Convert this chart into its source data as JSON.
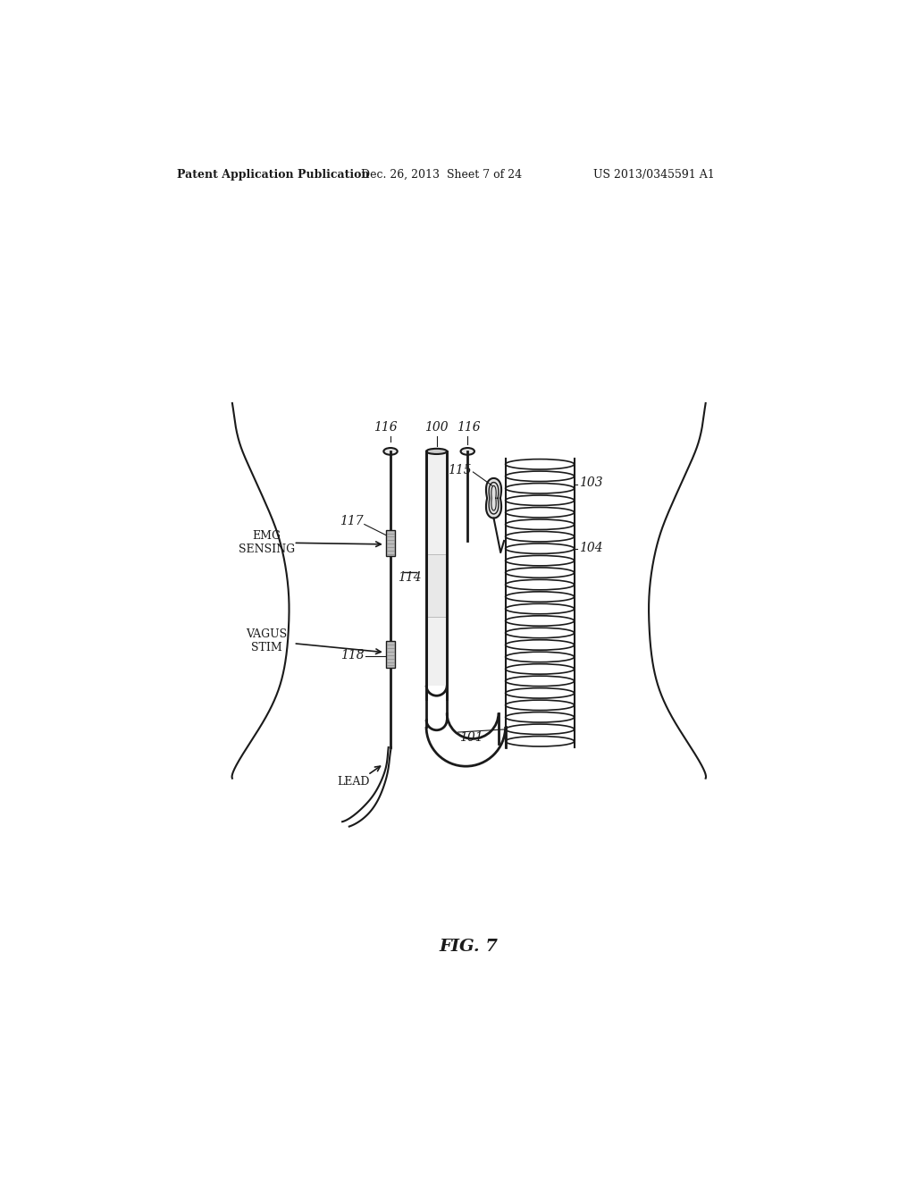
{
  "header_left": "Patent Application Publication",
  "header_center": "Dec. 26, 2013  Sheet 7 of 24",
  "header_right": "US 2013/0345591 A1",
  "figure_label": "FIG. 7",
  "bg": "#ffffff",
  "lc": "#1a1a1a",
  "gray_elec": "#bbbbbb",
  "gray_light": "#e8e8e8",
  "gray_tube": "#e0e0e0"
}
